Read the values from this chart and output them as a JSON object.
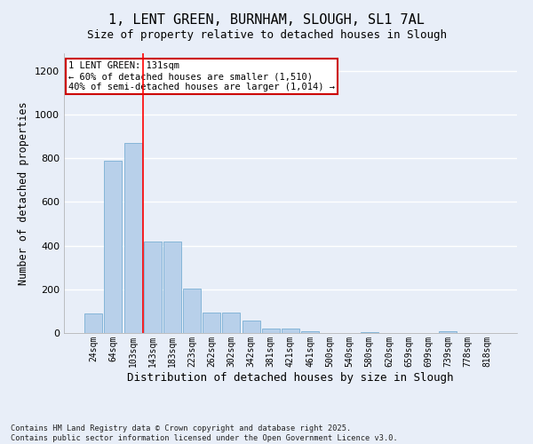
{
  "title_line1": "1, LENT GREEN, BURNHAM, SLOUGH, SL1 7AL",
  "title_line2": "Size of property relative to detached houses in Slough",
  "xlabel": "Distribution of detached houses by size in Slough",
  "ylabel": "Number of detached properties",
  "footer_line1": "Contains HM Land Registry data © Crown copyright and database right 2025.",
  "footer_line2": "Contains public sector information licensed under the Open Government Licence v3.0.",
  "annotation_line1": "1 LENT GREEN: 131sqm",
  "annotation_line2": "← 60% of detached houses are smaller (1,510)",
  "annotation_line3": "40% of semi-detached houses are larger (1,014) →",
  "bar_labels": [
    "24sqm",
    "64sqm",
    "103sqm",
    "143sqm",
    "183sqm",
    "223sqm",
    "262sqm",
    "302sqm",
    "342sqm",
    "381sqm",
    "421sqm",
    "461sqm",
    "500sqm",
    "540sqm",
    "580sqm",
    "620sqm",
    "659sqm",
    "699sqm",
    "739sqm",
    "778sqm",
    "818sqm"
  ],
  "bar_values": [
    90,
    790,
    870,
    420,
    420,
    205,
    95,
    95,
    55,
    20,
    20,
    10,
    0,
    0,
    5,
    0,
    0,
    0,
    10,
    0,
    0
  ],
  "bar_color": "#b8d0ea",
  "bar_edge_color": "#7aafd4",
  "red_line_x": 2.5,
  "ylim": [
    0,
    1280
  ],
  "yticks": [
    0,
    200,
    400,
    600,
    800,
    1000,
    1200
  ],
  "background_color": "#e8eef8",
  "grid_color": "#ffffff",
  "annotation_box_color": "#cc0000"
}
